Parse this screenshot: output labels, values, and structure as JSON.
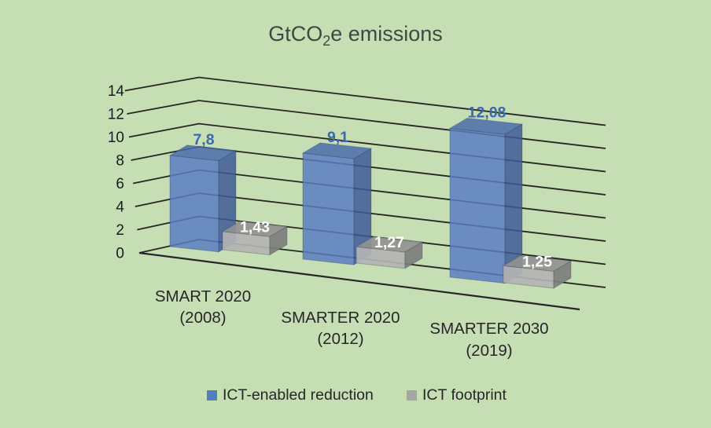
{
  "window": {
    "background": "#c5deb4"
  },
  "chart_data": {
    "type": "bar",
    "projection": "3d-perspective",
    "title": "GtCO2e emissions",
    "title_parts": {
      "prefix": "GtCO",
      "subscript": "2",
      "suffix": "e emissions"
    },
    "categories": [
      {
        "line1": "SMART 2020",
        "line2": "(2008)"
      },
      {
        "line1": "SMARTER 2020",
        "line2": "(2012)"
      },
      {
        "line1": "SMARTER 2030",
        "line2": "(2019)"
      }
    ],
    "series": [
      {
        "name": "ICT-enabled reduction",
        "values": [
          7.8,
          9.1,
          12.08
        ],
        "labels": [
          "7,8",
          "9,1",
          "12,08"
        ],
        "color": "#4f81bd",
        "label_color": "#3c68b0"
      },
      {
        "name": "ICT footprint",
        "values": [
          1.43,
          1.27,
          1.25
        ],
        "labels": [
          "1,43",
          "1,27",
          "1,25"
        ],
        "color": "#a6a6a6",
        "label_color": "#ffffff"
      }
    ],
    "y_axis": {
      "min": 0,
      "max": 14,
      "step": 2,
      "ticks": [
        "0",
        "2",
        "4",
        "6",
        "8",
        "10",
        "12",
        "14"
      ]
    },
    "decimal_separator": ",",
    "gridlines": true,
    "legend_position": "bottom",
    "colors": {
      "background": "#c5deb4",
      "gridline": "#262626",
      "title_text": "#3f4843",
      "axis_text": "#1b1b1b",
      "category_text": "#272727",
      "legend_text": "#272727",
      "blue_front": "#5b7ec0",
      "blue_top": "#4a6cab",
      "blue_side": "#3e5b97",
      "gray_front": "#b3b3b3",
      "gray_top": "#919191",
      "gray_side": "#7d7d7d"
    }
  }
}
